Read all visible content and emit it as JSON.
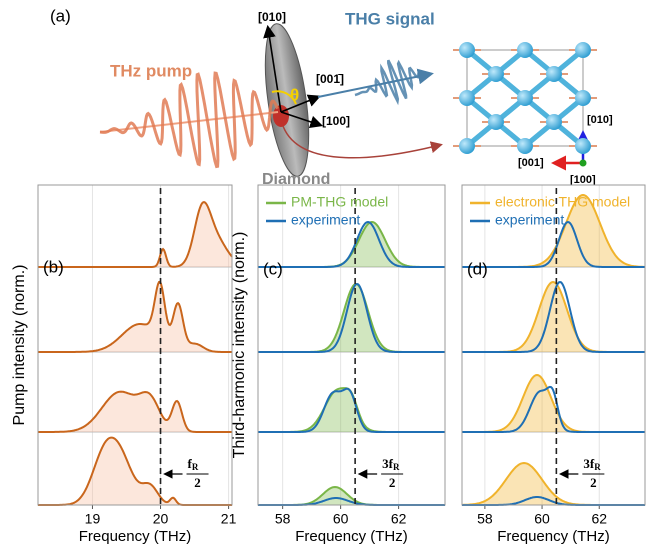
{
  "panel_a": {
    "label": "(a)",
    "pump": "THz pump",
    "signal": "THG signal",
    "sample": "Diamond",
    "angle": "θ",
    "dir_010": "[010]",
    "dir_001": "[001̄]",
    "dir_100": "[100]",
    "lattice_010": "[010]",
    "lattice_001": "[001]",
    "lattice_100": "[100]"
  },
  "chart_data": [
    {
      "type": "line",
      "label": "(b)",
      "ylabel": "Pump intensity (norm.)",
      "xlabel": "Frequency (THz)",
      "xlim": [
        18.2,
        21.05
      ],
      "xticks": [
        19,
        20,
        21
      ],
      "marker_x": 20,
      "annotation": {
        "numerator": "f",
        "subscript": "R",
        "denominator": "2"
      },
      "fill_color": "#f7b99b",
      "line_color": "#c9661c"
    },
    {
      "type": "line",
      "label": "(c)",
      "ylabel": "Third-harmonic intensity (norm.)",
      "xlabel": "Frequency (THz)",
      "xlim": [
        57.15,
        63.6
      ],
      "xticks": [
        58,
        60,
        62
      ],
      "marker_x": 60.5,
      "annotation": {
        "numerator": "3f",
        "subscript": "R",
        "denominator": "2"
      },
      "series": [
        {
          "name": "PM-THG model",
          "color": "#7ab648"
        },
        {
          "name": "experiment",
          "color": "#1f6fb4"
        }
      ]
    },
    {
      "type": "line",
      "label": "(d)",
      "xlabel": "Frequency (THz)",
      "xlim": [
        57.2,
        63.6
      ],
      "xticks": [
        58,
        60,
        62
      ],
      "marker_x": 60.5,
      "annotation": {
        "numerator": "3f",
        "subscript": "R",
        "denominator": "2"
      },
      "series": [
        {
          "name": "electronic THG model",
          "color": "#f0b32c"
        },
        {
          "name": "experiment",
          "color": "#1f6fb4"
        }
      ]
    }
  ]
}
